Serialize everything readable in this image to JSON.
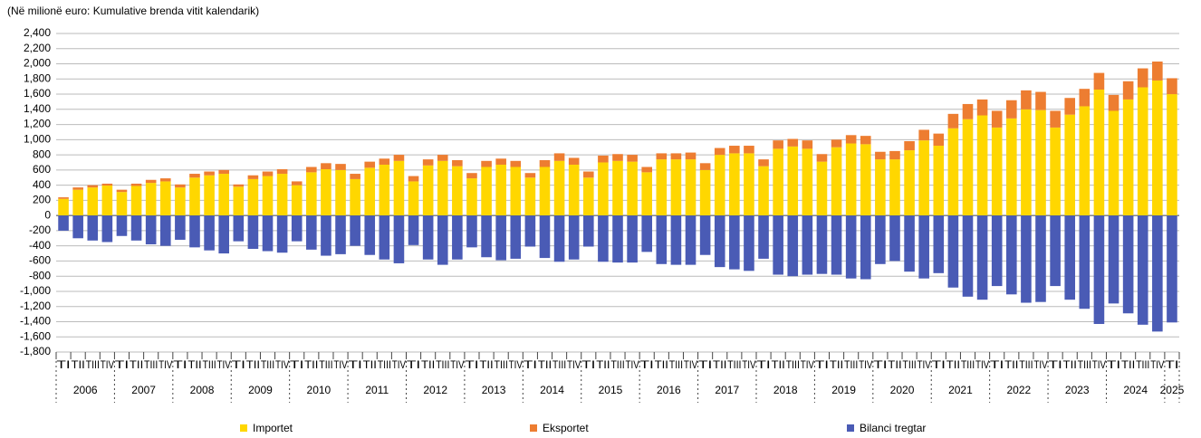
{
  "chart_data": {
    "type": "bar",
    "stacked": true,
    "title": "(Në milionë euro: Kumulative brenda vitit kalendarik)",
    "categories": [
      "TI",
      "TII",
      "TIII",
      "TIV",
      "TI",
      "TII",
      "TIII",
      "TIV",
      "TI",
      "TII",
      "TIII",
      "TIV",
      "TI",
      "TII",
      "TIII",
      "TIV",
      "TI",
      "TII",
      "TIII",
      "TIV",
      "TI",
      "TII",
      "TIII",
      "TIV",
      "TI",
      "TII",
      "TIII",
      "TIV",
      "TI",
      "TII",
      "TIII",
      "TIV",
      "TI",
      "TII",
      "TIII",
      "TIV",
      "TI",
      "TII",
      "TIII",
      "TIV",
      "TI",
      "TII",
      "TIII",
      "TIV",
      "TI",
      "TII",
      "TIII",
      "TIV",
      "TI",
      "TII",
      "TIII",
      "TIV",
      "TI",
      "TII",
      "TIII",
      "TIV",
      "TI",
      "TII",
      "TIII",
      "TIV",
      "TI",
      "TII",
      "TIII",
      "TIV",
      "TI",
      "TII",
      "TIII",
      "TIV",
      "TI",
      "TII",
      "TIII",
      "TIV",
      "TI",
      "TII",
      "TIII",
      "TIV",
      "TI"
    ],
    "years": [
      "2006",
      "2007",
      "2008",
      "2009",
      "2010",
      "2011",
      "2012",
      "2013",
      "2014",
      "2015",
      "2016",
      "2017",
      "2018",
      "2019",
      "2020",
      "2021",
      "2022",
      "2023",
      "2024",
      "2025"
    ],
    "series": [
      {
        "name": "Importet",
        "color": "#ffd700",
        "values": [
          220,
          340,
          370,
          395,
          310,
          390,
          430,
          450,
          370,
          500,
          530,
          550,
          380,
          480,
          520,
          550,
          400,
          570,
          610,
          600,
          480,
          630,
          670,
          720,
          450,
          660,
          720,
          650,
          490,
          640,
          670,
          640,
          500,
          640,
          720,
          670,
          500,
          700,
          720,
          710,
          570,
          740,
          740,
          740,
          600,
          800,
          820,
          820,
          650,
          880,
          910,
          880,
          710,
          900,
          950,
          940,
          740,
          740,
          860,
          990,
          920,
          1150,
          1270,
          1320,
          1160,
          1280,
          1400,
          1390,
          1160,
          1330,
          1440,
          1660,
          1380,
          1530,
          1690,
          1780,
          1600
        ]
      },
      {
        "name": "Eksportet",
        "color": "#ed7d31",
        "values": [
          20,
          30,
          30,
          25,
          30,
          30,
          40,
          40,
          40,
          50,
          50,
          50,
          30,
          50,
          60,
          60,
          50,
          70,
          80,
          80,
          70,
          80,
          80,
          80,
          70,
          80,
          80,
          80,
          70,
          80,
          80,
          80,
          60,
          90,
          100,
          90,
          80,
          90,
          90,
          90,
          70,
          80,
          80,
          90,
          90,
          90,
          100,
          100,
          90,
          110,
          100,
          110,
          100,
          100,
          110,
          110,
          100,
          110,
          120,
          140,
          160,
          190,
          200,
          210,
          220,
          240,
          250,
          240,
          220,
          220,
          230,
          220,
          210,
          240,
          250,
          250,
          210
        ]
      },
      {
        "name": "Bilanci tregtar",
        "color": "#4a5bb5",
        "values": [
          -200,
          -300,
          -330,
          -350,
          -270,
          -330,
          -380,
          -400,
          -320,
          -420,
          -460,
          -500,
          -340,
          -440,
          -470,
          -490,
          -340,
          -450,
          -530,
          -510,
          -400,
          -520,
          -580,
          -630,
          -390,
          -580,
          -650,
          -580,
          -420,
          -550,
          -590,
          -570,
          -410,
          -560,
          -610,
          -580,
          -410,
          -610,
          -620,
          -620,
          -480,
          -640,
          -650,
          -650,
          -520,
          -680,
          -710,
          -730,
          -570,
          -780,
          -800,
          -780,
          -770,
          -780,
          -830,
          -840,
          -640,
          -600,
          -740,
          -830,
          -760,
          -950,
          -1070,
          -1110,
          -930,
          -1040,
          -1150,
          -1140,
          -930,
          -1110,
          -1230,
          -1430,
          -1160,
          -1290,
          -1440,
          -1530,
          -1410
        ]
      }
    ],
    "ylim": [
      -1800,
      2400
    ],
    "yticks": [
      {
        "value": -1800,
        "label": "-1,800"
      },
      {
        "value": -1600,
        "label": "-1,600"
      },
      {
        "value": -1400,
        "label": "-1,400"
      },
      {
        "value": -1200,
        "label": "-1,200"
      },
      {
        "value": -1000,
        "label": "-1,000"
      },
      -800,
      -600,
      -400,
      -200,
      0,
      200,
      400,
      600,
      800,
      {
        "value": 1000,
        "label": "1,000"
      },
      {
        "value": 1200,
        "label": "1,200"
      },
      {
        "value": 1400,
        "label": "1,400"
      },
      {
        "value": 1600,
        "label": "1,600"
      },
      {
        "value": 1800,
        "label": "1,800"
      },
      {
        "value": 2000,
        "label": "2,000"
      },
      {
        "value": 2200,
        "label": "2,200"
      },
      {
        "value": 2400,
        "label": "2,400"
      }
    ],
    "grid": true,
    "legend": "bottom"
  }
}
